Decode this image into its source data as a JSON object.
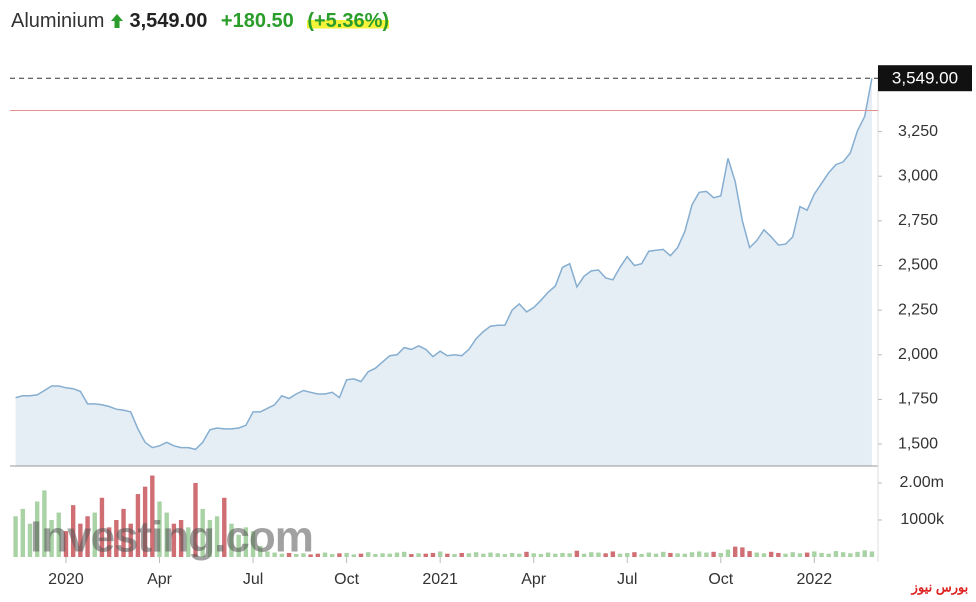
{
  "header": {
    "name": "Aluminium",
    "price": "3,549.00",
    "change": "+180.50",
    "change_pct": "(+5.36%)"
  },
  "chart_data": [
    {
      "type": "line",
      "categories": [
        null,
        null,
        null,
        null,
        null,
        null,
        null,
        "2020",
        null,
        null,
        null,
        null,
        null,
        null,
        null,
        null,
        null,
        null,
        null,
        null,
        "Apr",
        null,
        null,
        null,
        null,
        null,
        null,
        null,
        null,
        null,
        null,
        null,
        null,
        "Jul",
        null,
        null,
        null,
        null,
        null,
        null,
        null,
        null,
        null,
        null,
        null,
        null,
        "Oct",
        null,
        null,
        null,
        null,
        null,
        null,
        null,
        null,
        null,
        null,
        null,
        null,
        "2021",
        null,
        null,
        null,
        null,
        null,
        null,
        null,
        null,
        null,
        null,
        null,
        null,
        "Apr",
        null,
        null,
        null,
        null,
        null,
        null,
        null,
        null,
        null,
        null,
        null,
        null,
        "Jul",
        null,
        null,
        null,
        null,
        null,
        null,
        null,
        null,
        null,
        null,
        null,
        null,
        "Oct",
        null,
        null,
        null,
        null,
        null,
        null,
        null,
        null,
        null,
        null,
        null,
        null,
        "2022",
        null,
        null,
        null,
        null,
        null,
        null,
        null,
        null
      ],
      "values": [
        1760,
        1770,
        1770,
        1775,
        1800,
        1825,
        1825,
        1815,
        1810,
        1795,
        1725,
        1725,
        1720,
        1710,
        1695,
        1690,
        1680,
        1585,
        1510,
        1480,
        1490,
        1510,
        1490,
        1480,
        1480,
        1470,
        1510,
        1580,
        1590,
        1585,
        1585,
        1590,
        1605,
        1680,
        1680,
        1700,
        1720,
        1770,
        1755,
        1780,
        1800,
        1790,
        1780,
        1780,
        1790,
        1760,
        1860,
        1865,
        1850,
        1905,
        1925,
        1960,
        1995,
        2000,
        2040,
        2030,
        2050,
        2030,
        1990,
        2020,
        1995,
        2000,
        1995,
        2030,
        2090,
        2130,
        2160,
        2165,
        2165,
        2250,
        2285,
        2240,
        2265,
        2305,
        2350,
        2385,
        2490,
        2510,
        2380,
        2440,
        2470,
        2475,
        2430,
        2420,
        2490,
        2550,
        2500,
        2510,
        2580,
        2585,
        2590,
        2555,
        2600,
        2690,
        2840,
        2910,
        2915,
        2880,
        2890,
        3100,
        2970,
        2750,
        2600,
        2640,
        2700,
        2660,
        2615,
        2620,
        2660,
        2830,
        2810,
        2900,
        2960,
        3020,
        3065,
        3080,
        3130,
        3255,
        3335,
        3549
      ],
      "color": "#86aed0",
      "area_color": "#e5edf5",
      "ylim": [
        1377,
        3595
      ],
      "yticks": [
        {
          "value": 1500,
          "label": "1,500"
        },
        {
          "value": 1750,
          "label": "1,750"
        },
        {
          "value": 2000,
          "label": "2,000"
        },
        {
          "value": 2250,
          "label": "2,250"
        },
        {
          "value": 2500,
          "label": "2,500"
        },
        {
          "value": 2750,
          "label": "2,750"
        },
        {
          "value": 3000,
          "label": "3,000"
        },
        {
          "value": 3250,
          "label": "3,250"
        }
      ],
      "last_label": "3,549.00",
      "previous_close": 3368.5,
      "watermark": "Investing.com",
      "source_logo": "بورس نیوز"
    },
    {
      "type": "bar",
      "values": [
        1100000,
        1300000,
        900000,
        1500000,
        1800000,
        1000000,
        1200000,
        700000,
        1400000,
        900000,
        1100000,
        1200000,
        1600000,
        800000,
        1000000,
        1300000,
        900000,
        1700000,
        1900000,
        2200000,
        1500000,
        1200000,
        900000,
        1000000,
        800000,
        2000000,
        1300000,
        1000000,
        1100000,
        1600000,
        900000,
        600000,
        800000,
        700000,
        300000,
        150000,
        120000,
        90000,
        110000,
        80000,
        100000,
        70000,
        90000,
        120000,
        80000,
        100000,
        110000,
        70000,
        90000,
        130000,
        80000,
        100000,
        90000,
        120000,
        140000,
        80000,
        100000,
        90000,
        110000,
        150000,
        90000,
        80000,
        110000,
        100000,
        130000,
        90000,
        120000,
        100000,
        80000,
        110000,
        90000,
        140000,
        100000,
        80000,
        120000,
        90000,
        110000,
        100000,
        170000,
        90000,
        130000,
        120000,
        100000,
        150000,
        90000,
        110000,
        130000,
        80000,
        120000,
        90000,
        140000,
        110000,
        100000,
        90000,
        130000,
        150000,
        120000,
        140000,
        110000,
        200000,
        280000,
        260000,
        160000,
        120000,
        100000,
        140000,
        110000,
        90000,
        130000,
        100000,
        120000,
        150000,
        110000,
        90000,
        160000,
        130000,
        100000,
        140000,
        180000,
        150000
      ],
      "up_color": "#a9d3a5",
      "down_color": "#cf6f73",
      "ylim": [
        0,
        2350000
      ],
      "yticks": [
        {
          "value": 1000000,
          "label": "1000k"
        },
        {
          "value": 2000000,
          "label": "2.00m"
        }
      ]
    }
  ]
}
